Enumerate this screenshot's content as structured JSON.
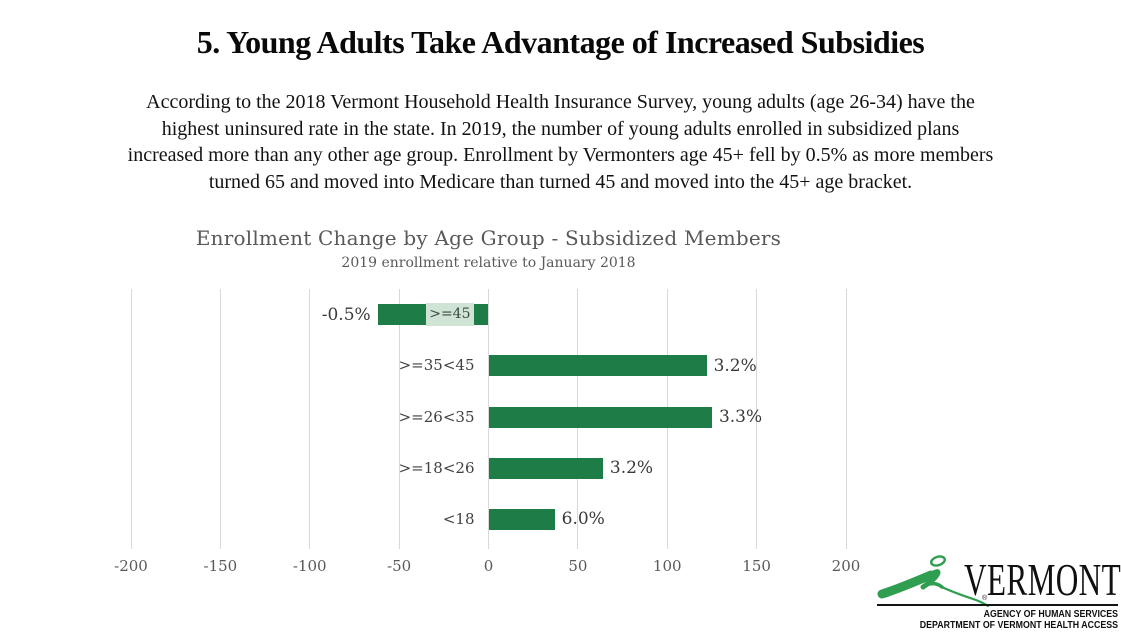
{
  "page": {
    "title": "5. Young Adults Take Advantage of Increased Subsidies",
    "paragraph_lines": [
      "According to the 2018 Vermont Household Health Insurance Survey, young adults (age 26-34) have the",
      "highest uninsured rate in the state. In 2019, the number of young adults enrolled in subsidized plans",
      "increased more than any other age group. Enrollment by Vermonters age 45+ fell by 0.5% as more members",
      "turned 65 and moved into Medicare than turned 45 and moved into the 45+ age bracket."
    ]
  },
  "chart": {
    "title": "Enrollment Change by Age Group - Subsidized Members",
    "subtitle": "2019 enrollment relative to January 2018"
  },
  "chart_data": {
    "type": "bar",
    "orientation": "horizontal",
    "title": "Enrollment Change by Age Group - Subsidized Members",
    "subtitle": "2019 enrollment relative to January 2018",
    "categories": [
      ">=45",
      ">=35<45",
      ">=26<35",
      ">=18<26",
      "<18"
    ],
    "values": [
      -62,
      122,
      125,
      64,
      37
    ],
    "data_labels": [
      "-0.5%",
      "3.2%",
      "3.3%",
      "3.2%",
      "6.0%"
    ],
    "xlim": [
      -200,
      200
    ],
    "xticks": [
      -200,
      -150,
      -100,
      -50,
      0,
      50,
      100,
      150,
      200
    ],
    "xtick_labels": [
      "-200",
      "-150",
      "-100",
      "-50",
      "0",
      "50",
      "100",
      "150",
      "200"
    ],
    "grid": "vertical-only",
    "legend": "none",
    "bar_color": "#1e7c46",
    "negative_label_box_color": "#cfe4d4",
    "gridline_color": "#d9d9d9",
    "text_color": "#595959"
  },
  "logo": {
    "wordmark": "VERMONT",
    "registered_mark": "®",
    "line1": "AGENCY OF HUMAN SERVICES",
    "line2": "DEPARTMENT OF VERMONT HEALTH ACCESS",
    "mountain_color": "#2f9e50"
  }
}
